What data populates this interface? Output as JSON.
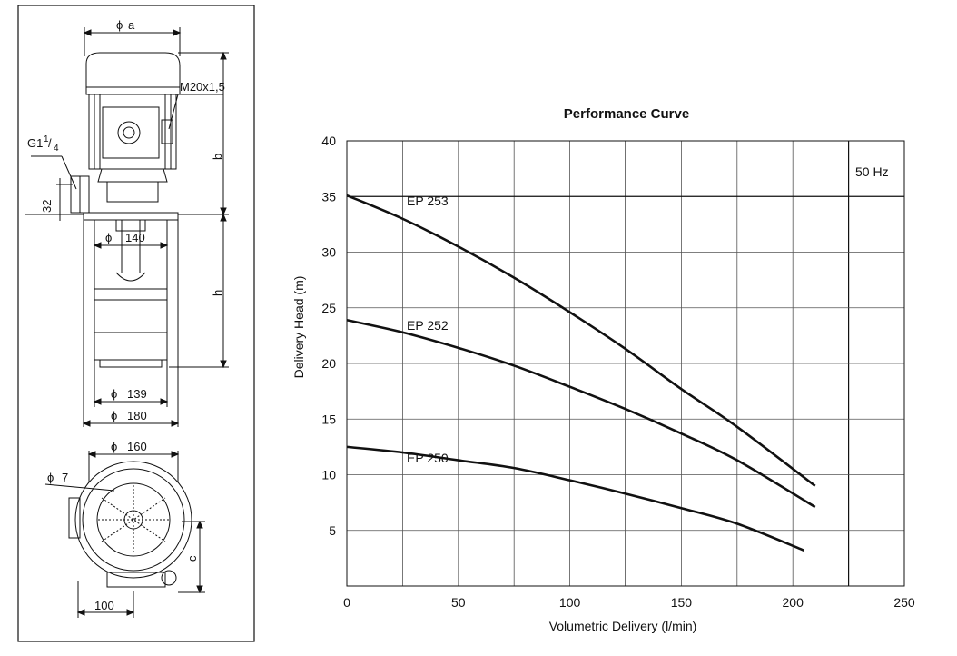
{
  "drawing": {
    "dim_a": "a",
    "dim_thread": "M20x1,5",
    "dim_g": "G1",
    "dim_g_frac_num": "1",
    "dim_g_frac_den": "4",
    "dim_32": "32",
    "dim_b": "b",
    "dim_h": "h",
    "dim_140": "140",
    "dim_139": "139",
    "dim_180": "180",
    "dim_160": "160",
    "dim_7": "7",
    "dim_c": "c",
    "dim_100": "100",
    "diameter_symbol": "ϕ"
  },
  "chart_data": {
    "type": "line",
    "title": "Performance Curve",
    "xlabel": "Volumetric Delivery (l/min)",
    "ylabel": "Delivery Head (m)",
    "xlim": [
      0,
      250
    ],
    "ylim": [
      0,
      40
    ],
    "x_ticks": [
      "0",
      "50",
      "100",
      "150",
      "200",
      "250"
    ],
    "y_ticks": [
      "5",
      "10",
      "15",
      "20",
      "25",
      "30",
      "35",
      "40"
    ],
    "x_tick_values": [
      0,
      50,
      100,
      150,
      200,
      250
    ],
    "y_tick_values": [
      5,
      10,
      15,
      20,
      25,
      30,
      35,
      40
    ],
    "grid": true,
    "annotation": "50 Hz",
    "series": [
      {
        "name": "EP 253",
        "x": [
          0,
          25,
          50,
          75,
          100,
          125,
          150,
          175,
          210
        ],
        "y": [
          35.1,
          33.0,
          30.5,
          27.7,
          24.6,
          21.3,
          17.7,
          14.3,
          9.0
        ]
      },
      {
        "name": "EP 252",
        "x": [
          0,
          25,
          50,
          75,
          100,
          125,
          150,
          175,
          210
        ],
        "y": [
          23.9,
          22.8,
          21.4,
          19.8,
          17.9,
          15.9,
          13.7,
          11.3,
          7.1
        ]
      },
      {
        "name": "EP 250",
        "x": [
          0,
          25,
          50,
          75,
          100,
          125,
          150,
          175,
          205
        ],
        "y": [
          12.5,
          12.0,
          11.3,
          10.6,
          9.5,
          8.3,
          7.0,
          5.6,
          3.2
        ]
      }
    ]
  }
}
